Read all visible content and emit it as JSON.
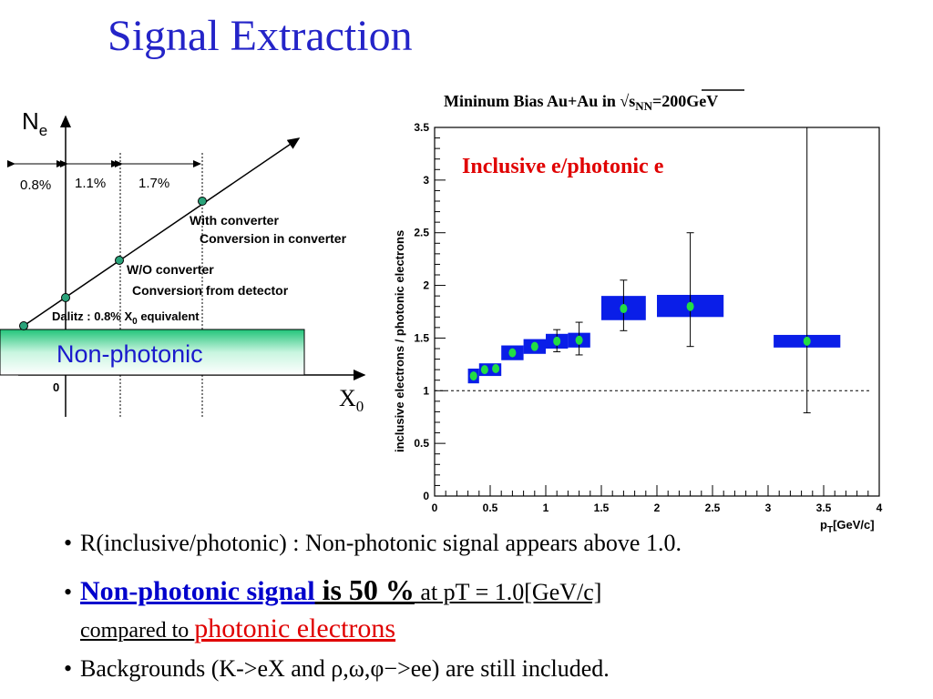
{
  "slide": {
    "title": "Signal Extraction"
  },
  "diagram": {
    "y_axis_label": "N",
    "y_axis_sub": "e",
    "x_axis_label": "X",
    "x_axis_sub": "0",
    "origin_label": "0",
    "intervals": [
      "0.8%",
      "1.1%",
      "1.7%"
    ],
    "with_converter": "With converter",
    "conversion_in_converter": "Conversion in converter",
    "wo_converter": "W/O converter",
    "conversion_from_detector": "Conversion from detector",
    "dalitz_prefix": "Dalitz : 0.8% X",
    "dalitz_sub": "0",
    "dalitz_suffix": " equivalent",
    "non_photonic_box": "Non-photonic",
    "box_color": "#2ecc8a"
  },
  "chart_data": {
    "type": "scatter",
    "title_prefix": "Mininum Bias  Au+Au in √s",
    "title_sub": "NN",
    "title_suffix": "=200GeV",
    "annotation": "Inclusive e/photonic e",
    "xlabel": "p",
    "xlabel_sub": "T",
    "xlabel_suffix": "[GeV/c]",
    "ylabel": "inclusive electrons / photonic electrons",
    "xlim": [
      0,
      4
    ],
    "ylim": [
      0,
      3.5
    ],
    "x_ticks": [
      "0",
      "0.5",
      "1",
      "1.5",
      "2",
      "2.5",
      "3",
      "3.5",
      "4"
    ],
    "y_ticks": [
      "0",
      "0.5",
      "1",
      "1.5",
      "2",
      "2.5",
      "3",
      "3.5"
    ],
    "reference_line_y": 1.0,
    "box_color": "#0a1ee8",
    "point_color": "#22dd44",
    "points": [
      {
        "x": 0.35,
        "y": 1.14,
        "sys_half_x": 0.05,
        "sys_low": 1.07,
        "sys_high": 1.21,
        "err_low": 1.14,
        "err_high": 1.14
      },
      {
        "x": 0.45,
        "y": 1.2,
        "sys_half_x": 0.05,
        "sys_low": 1.14,
        "sys_high": 1.26,
        "err_low": 1.2,
        "err_high": 1.2
      },
      {
        "x": 0.55,
        "y": 1.21,
        "sys_half_x": 0.05,
        "sys_low": 1.14,
        "sys_high": 1.26,
        "err_low": 1.21,
        "err_high": 1.21
      },
      {
        "x": 0.7,
        "y": 1.36,
        "sys_half_x": 0.1,
        "sys_low": 1.29,
        "sys_high": 1.43,
        "err_low": 1.36,
        "err_high": 1.36
      },
      {
        "x": 0.9,
        "y": 1.42,
        "sys_half_x": 0.1,
        "sys_low": 1.35,
        "sys_high": 1.49,
        "err_low": 1.42,
        "err_high": 1.42
      },
      {
        "x": 1.1,
        "y": 1.47,
        "sys_half_x": 0.1,
        "sys_low": 1.4,
        "sys_high": 1.54,
        "err_low": 1.37,
        "err_high": 1.58
      },
      {
        "x": 1.3,
        "y": 1.48,
        "sys_half_x": 0.1,
        "sys_low": 1.41,
        "sys_high": 1.55,
        "err_low": 1.34,
        "err_high": 1.65
      },
      {
        "x": 1.7,
        "y": 1.78,
        "sys_half_x": 0.2,
        "sys_low": 1.67,
        "sys_high": 1.9,
        "err_low": 1.57,
        "err_high": 2.05
      },
      {
        "x": 2.3,
        "y": 1.8,
        "sys_half_x": 0.3,
        "sys_low": 1.7,
        "sys_high": 1.91,
        "err_low": 1.42,
        "err_high": 2.5
      },
      {
        "x": 3.35,
        "y": 1.47,
        "sys_half_x": 0.3,
        "sys_low": 1.41,
        "sys_high": 1.53,
        "err_low": 0.79,
        "err_high": 3.5
      }
    ]
  },
  "bullets": {
    "b1": "R(inclusive/photonic) : Non-photonic signal appears above 1.0.",
    "b2_part1": "Non-photonic signal",
    "b2_part2": " is 50 %",
    "b2_part3": " at pT = 1.0[GeV/c]",
    "b2_line2_part1": "compared to ",
    "b2_line2_part2": "photonic electrons",
    "b3": "Backgrounds (K->eX and ρ,ω,φ−>ee) are still included."
  }
}
